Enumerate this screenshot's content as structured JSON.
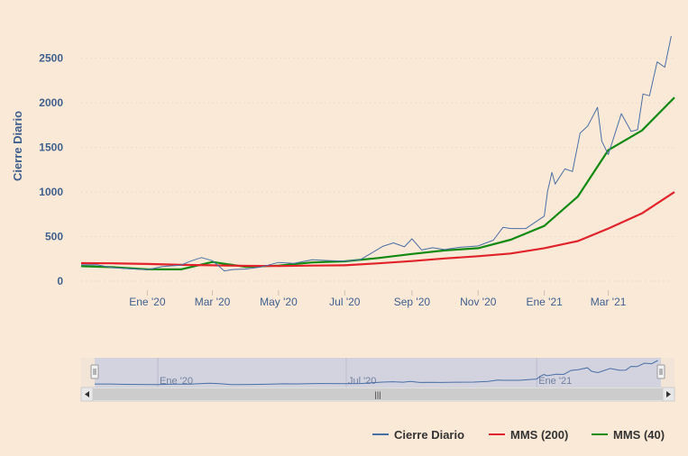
{
  "chart_data": {
    "type": "line",
    "title": "",
    "ylabel": "Cierre Diario",
    "xlabel": "",
    "ylim": [
      0,
      2750
    ],
    "xlim": [
      "2019-11-01",
      "2021-05-01"
    ],
    "yticks": [
      0,
      500,
      1000,
      1500,
      2000,
      2500
    ],
    "ytick_labels": [
      "0",
      "500",
      "1000",
      "1500",
      "2000",
      "2500"
    ],
    "xticks": [
      "2020-01-01",
      "2020-03-01",
      "2020-05-01",
      "2020-07-01",
      "2020-09-01",
      "2020-11-01",
      "2021-01-01",
      "2021-03-01"
    ],
    "xtick_labels": [
      "Ene '20",
      "Mar '20",
      "May '20",
      "Jul '20",
      "Sep '20",
      "Nov '20",
      "Ene '21",
      "Mar '21"
    ],
    "grid": true,
    "legend_position": "bottom-right",
    "series": [
      {
        "name": "Cierre Diario",
        "color": "#4a6fa5",
        "points": [
          [
            "2019-11-01",
            183
          ],
          [
            "2019-11-15",
            184
          ],
          [
            "2019-12-01",
            151
          ],
          [
            "2019-12-15",
            140
          ],
          [
            "2020-01-01",
            128
          ],
          [
            "2020-01-15",
            165
          ],
          [
            "2020-02-01",
            180
          ],
          [
            "2020-02-10",
            225
          ],
          [
            "2020-02-20",
            265
          ],
          [
            "2020-03-01",
            230
          ],
          [
            "2020-03-12",
            115
          ],
          [
            "2020-03-20",
            130
          ],
          [
            "2020-04-01",
            136
          ],
          [
            "2020-04-15",
            160
          ],
          [
            "2020-05-01",
            210
          ],
          [
            "2020-05-15",
            200
          ],
          [
            "2020-06-01",
            240
          ],
          [
            "2020-06-15",
            232
          ],
          [
            "2020-07-01",
            225
          ],
          [
            "2020-07-15",
            240
          ],
          [
            "2020-07-25",
            310
          ],
          [
            "2020-08-05",
            390
          ],
          [
            "2020-08-15",
            430
          ],
          [
            "2020-08-25",
            385
          ],
          [
            "2020-09-01",
            475
          ],
          [
            "2020-09-10",
            350
          ],
          [
            "2020-09-20",
            375
          ],
          [
            "2020-10-01",
            355
          ],
          [
            "2020-10-15",
            380
          ],
          [
            "2020-11-01",
            395
          ],
          [
            "2020-11-15",
            460
          ],
          [
            "2020-11-24",
            605
          ],
          [
            "2020-12-01",
            590
          ],
          [
            "2020-12-15",
            590
          ],
          [
            "2020-12-27",
            690
          ],
          [
            "2021-01-01",
            730
          ],
          [
            "2021-01-04",
            1010
          ],
          [
            "2021-01-08",
            1220
          ],
          [
            "2021-01-11",
            1090
          ],
          [
            "2021-01-20",
            1260
          ],
          [
            "2021-01-27",
            1230
          ],
          [
            "2021-02-03",
            1660
          ],
          [
            "2021-02-10",
            1740
          ],
          [
            "2021-02-19",
            1950
          ],
          [
            "2021-02-23",
            1570
          ],
          [
            "2021-03-01",
            1420
          ],
          [
            "2021-03-13",
            1880
          ],
          [
            "2021-03-22",
            1680
          ],
          [
            "2021-03-28",
            1700
          ],
          [
            "2021-04-02",
            2100
          ],
          [
            "2021-04-08",
            2080
          ],
          [
            "2021-04-15",
            2460
          ],
          [
            "2021-04-22",
            2400
          ],
          [
            "2021-04-28",
            2750
          ]
        ]
      },
      {
        "name": "MMS (200)",
        "color": "#e1242b",
        "points": [
          [
            "2019-11-01",
            202
          ],
          [
            "2019-12-01",
            200
          ],
          [
            "2020-01-01",
            193
          ],
          [
            "2020-02-01",
            183
          ],
          [
            "2020-03-01",
            178
          ],
          [
            "2020-04-01",
            172
          ],
          [
            "2020-05-01",
            170
          ],
          [
            "2020-06-01",
            175
          ],
          [
            "2020-07-01",
            178
          ],
          [
            "2020-08-01",
            200
          ],
          [
            "2020-09-01",
            225
          ],
          [
            "2020-10-01",
            255
          ],
          [
            "2020-11-01",
            280
          ],
          [
            "2020-12-01",
            310
          ],
          [
            "2021-01-01",
            370
          ],
          [
            "2021-02-01",
            450
          ],
          [
            "2021-03-01",
            590
          ],
          [
            "2021-04-01",
            760
          ],
          [
            "2021-05-01",
            1000
          ]
        ]
      },
      {
        "name": "MMS (40)",
        "color": "#128a12",
        "points": [
          [
            "2019-11-01",
            168
          ],
          [
            "2019-12-01",
            157
          ],
          [
            "2020-01-01",
            133
          ],
          [
            "2020-02-01",
            132
          ],
          [
            "2020-03-01",
            215
          ],
          [
            "2020-04-01",
            160
          ],
          [
            "2020-05-01",
            175
          ],
          [
            "2020-06-01",
            210
          ],
          [
            "2020-07-01",
            222
          ],
          [
            "2020-08-01",
            260
          ],
          [
            "2020-09-01",
            305
          ],
          [
            "2020-10-01",
            345
          ],
          [
            "2020-11-01",
            370
          ],
          [
            "2020-12-01",
            465
          ],
          [
            "2021-01-01",
            620
          ],
          [
            "2021-02-01",
            950
          ],
          [
            "2021-03-01",
            1470
          ],
          [
            "2021-04-01",
            1690
          ],
          [
            "2021-05-01",
            2060
          ]
        ]
      }
    ]
  },
  "navigator": {
    "labels": [
      "Ene '20",
      "Jul '20",
      "Ene '21"
    ],
    "label_dates": [
      "2020-01-01",
      "2020-07-01",
      "2021-01-01"
    ],
    "scroll_grip": "|||"
  },
  "legend": {
    "items": [
      {
        "label": "Cierre Diario",
        "color": "#4a6fa5"
      },
      {
        "label": "MMS (200)",
        "color": "#e1242b"
      },
      {
        "label": "MMS (40)",
        "color": "#128a12"
      }
    ]
  },
  "icons": {
    "scroll_left": "chevron-left-icon",
    "scroll_right": "chevron-right-icon",
    "handle": "drag-handle-icon"
  }
}
